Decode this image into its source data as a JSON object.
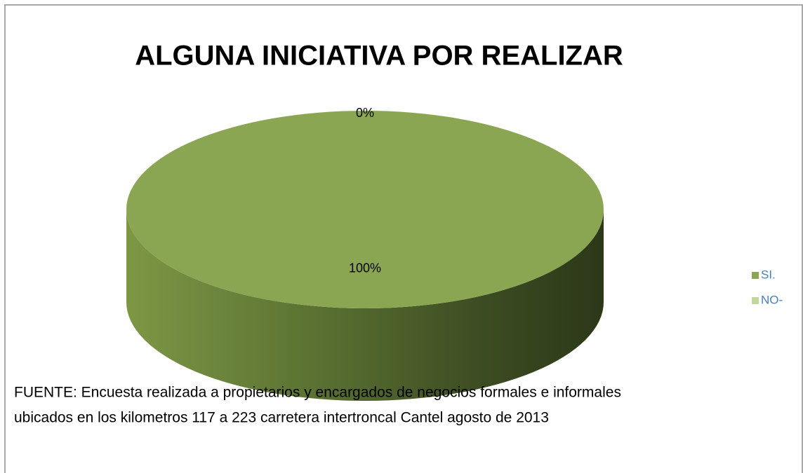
{
  "chart_data": {
    "type": "pie",
    "title": "ALGUNA INICIATIVA POR REALIZAR",
    "categories": [
      "SI.",
      "NO-"
    ],
    "values": [
      100,
      0
    ],
    "value_labels": [
      "100%",
      "0%"
    ],
    "colors": [
      "#8aa652",
      "#c3d69b"
    ],
    "note": [
      "FUENTE: Encuesta realizada a propietarios y encargados de negocios formales e informales",
      "ubicados en los kilometros 117 a 223 carretera intertroncal Cantel  agosto de 2013"
    ]
  }
}
